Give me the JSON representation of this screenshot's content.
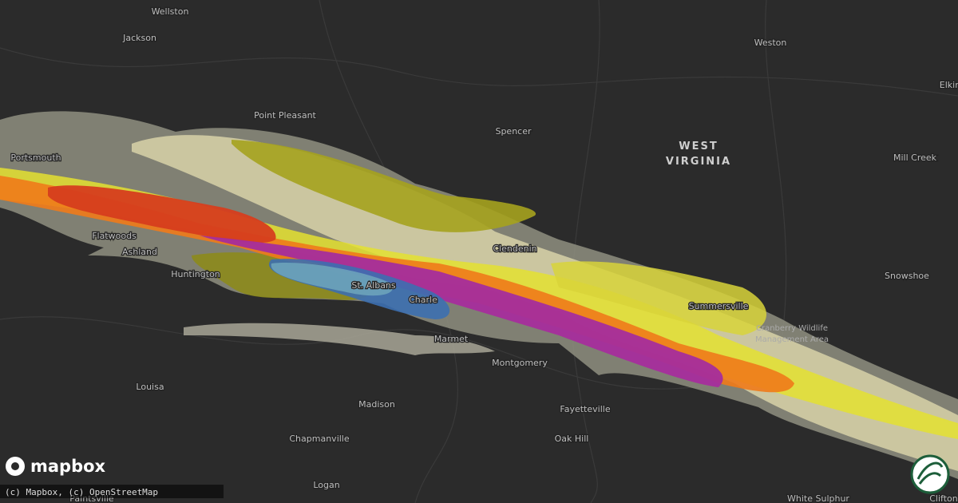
{
  "map": {
    "places": [
      "Wellston",
      "Jackson",
      "Weston",
      "Elkin",
      "Point Pleasant",
      "Spencer",
      "Portsmouth",
      "Mill Creek",
      "Flatwoods",
      "Ashland",
      "Huntington",
      "St. Albans",
      "Charle",
      "Clendenin",
      "Summersville",
      "Snowshoe",
      "Marmet",
      "Montgomery",
      "Fayetteville",
      "Louisa",
      "Madison",
      "Oak Hill",
      "Chapmanville",
      "Logan",
      "White Sulphur",
      "Clifton",
      "Paintsville"
    ],
    "region_label": [
      "WEST",
      "VIRGINIA"
    ],
    "area_label": [
      "Cranberry Wildlife",
      "Management Area"
    ],
    "logo": "mapbox",
    "attribution": "(c) Mapbox, (c) OpenStreetMap"
  }
}
